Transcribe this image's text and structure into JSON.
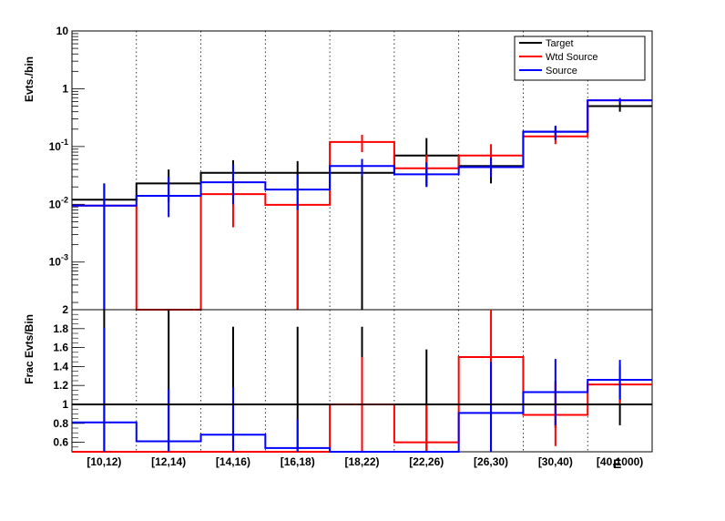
{
  "chart_data": [
    {
      "type": "line",
      "ylabel": "Evts./bin",
      "yscale": "log",
      "ylim": [
        0.00015,
        10
      ],
      "ytick_labels": [
        "10",
        "1",
        "10^-1",
        "10^-2",
        "10^-3"
      ],
      "categories": [
        "[10,12)",
        "[12,14)",
        "[14,16)",
        "[16,18)",
        "[18,22)",
        "[22,26)",
        "[26,30)",
        "[30,40)",
        "[40,1000)"
      ],
      "legend": {
        "position": "top-right"
      },
      "series": [
        {
          "name": "Target",
          "color": "#000000",
          "values": [
            0.012,
            0.023,
            0.035,
            0.035,
            0.035,
            0.07,
            0.046,
            0.18,
            0.5
          ],
          "err_low": [
            0.012,
            0.012,
            0.017,
            0.035,
            0.035,
            0.05,
            0.023,
            0.04,
            0.1
          ],
          "err_high": [
            0.011,
            0.017,
            0.023,
            0.021,
            0.021,
            0.07,
            0.03,
            0.04,
            0.1
          ]
        },
        {
          "name": "Wtd Source",
          "color": "#ff0000",
          "values": [
            0.0095,
            0.0001,
            0.015,
            0.0098,
            0.12,
            0.042,
            0.07,
            0.15,
            0.63
          ],
          "err_low": [
            0.0,
            0.0,
            0.011,
            0.0098,
            0.04,
            0.02,
            0.04,
            0.04,
            0.05
          ],
          "err_high": [
            0.0,
            0.0,
            0.015,
            0.0,
            0.04,
            0.03,
            0.04,
            0.04,
            0.05
          ]
        },
        {
          "name": "Source",
          "color": "#0000ff",
          "values": [
            0.0095,
            0.014,
            0.024,
            0.018,
            0.046,
            0.033,
            0.044,
            0.18,
            0.63
          ],
          "err_low": [
            0.0095,
            0.008,
            0.014,
            0.01,
            0.015,
            0.013,
            0.015,
            0.05,
            0.06
          ],
          "err_high": [
            0.013,
            0.016,
            0.025,
            0.015,
            0.015,
            0.02,
            0.02,
            0.05,
            0.06
          ]
        }
      ]
    },
    {
      "type": "line",
      "ylabel": "Frac Evts/Bin",
      "ylim": [
        0.5,
        2.0
      ],
      "ytick_labels": [
        "2",
        "1.8",
        "1.6",
        "1.4",
        "1.2",
        "1",
        "0.8",
        "0.6"
      ],
      "reference_line": 1,
      "categories": [
        "[10,12)",
        "[12,14)",
        "[14,16)",
        "[16,18)",
        "[18,22)",
        "[22,26)",
        "[26,30)",
        "[30,40)",
        "[40,1000)"
      ],
      "xlabel": "E",
      "series": [
        {
          "name": "Target",
          "color": "#000000",
          "values": [
            1,
            1,
            1,
            1,
            1,
            1,
            1,
            1,
            1
          ],
          "err_low": [
            0.5,
            0.5,
            0.5,
            0.5,
            0.5,
            0.5,
            0.5,
            0.25,
            0.22
          ],
          "err_high": [
            1.0,
            1.0,
            0.82,
            0.82,
            0.82,
            0.58,
            0.5,
            0.25,
            0.22
          ]
        },
        {
          "name": "Wtd Source",
          "color": "#ff0000",
          "values": [
            0.5,
            0.5,
            0.5,
            0.5,
            1.0,
            0.6,
            1.5,
            0.89,
            1.21
          ],
          "err_low": [
            0.0,
            0.0,
            0.0,
            0.0,
            0.5,
            0.1,
            0.5,
            0.33,
            0.2
          ],
          "err_high": [
            0.0,
            0.0,
            0.0,
            0.0,
            0.5,
            0.4,
            0.5,
            0.33,
            0.2
          ]
        },
        {
          "name": "Source",
          "color": "#0000ff",
          "values": [
            0.81,
            0.61,
            0.68,
            0.54,
            0.5,
            0.5,
            0.91,
            1.13,
            1.26
          ],
          "err_low": [
            0.31,
            0.11,
            0.18,
            0.04,
            0.0,
            0.0,
            0.41,
            0.35,
            0.21
          ],
          "err_high": [
            1.0,
            0.55,
            0.5,
            0.3,
            0.0,
            0.0,
            0.54,
            0.35,
            0.21
          ]
        }
      ]
    }
  ]
}
